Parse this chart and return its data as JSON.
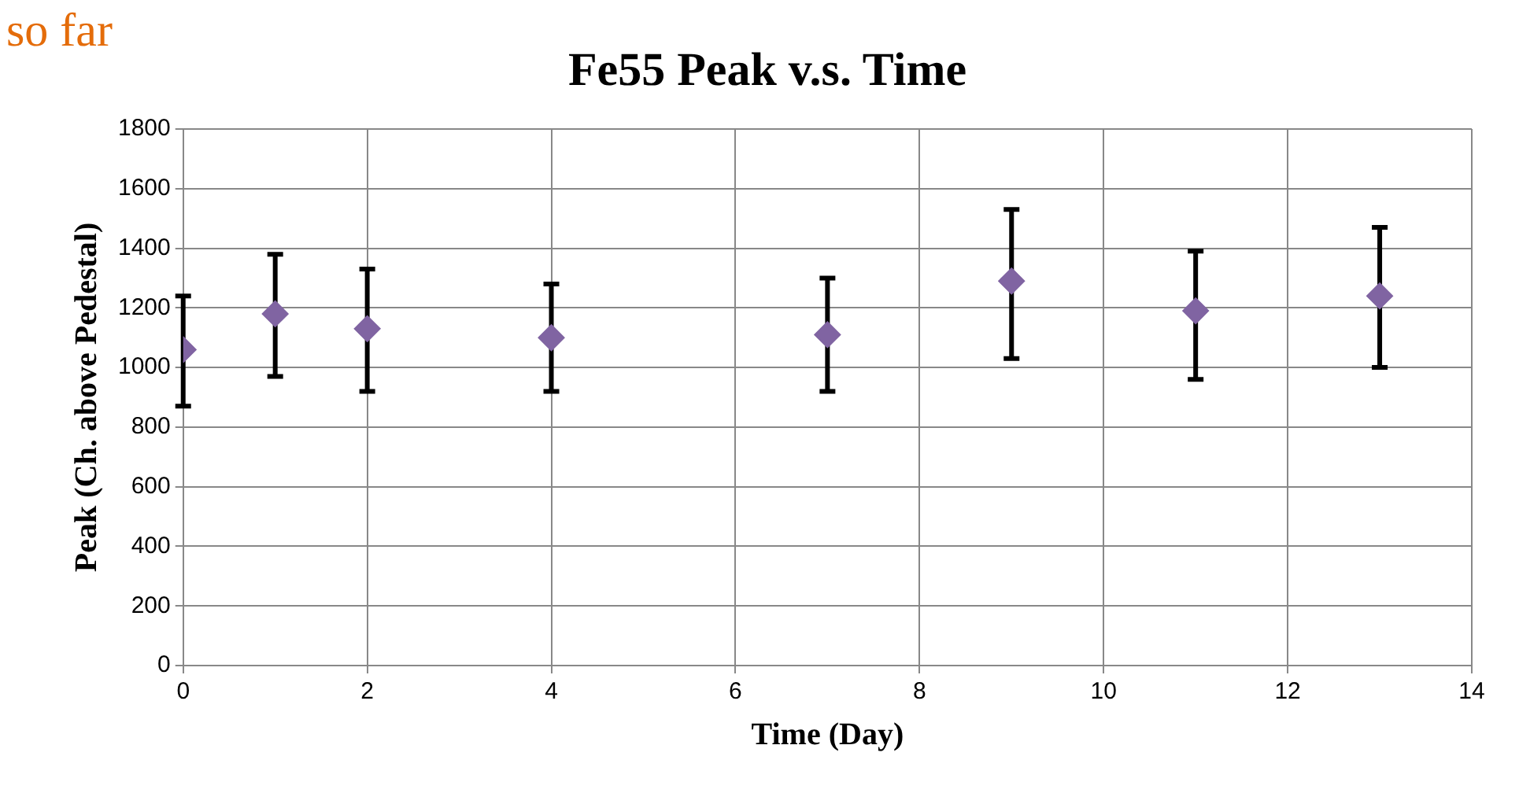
{
  "chart_data": {
    "type": "scatter",
    "title": "Fe55 Peak v.s. Time",
    "xlabel": "Time (Day)",
    "ylabel": "Peak (Ch. above Pedestal)",
    "annotations": [
      "so far"
    ],
    "x": [
      0,
      1,
      2,
      4,
      7,
      9,
      11,
      13
    ],
    "series": [
      {
        "color": "#8064a2",
        "values": [
          1060,
          1180,
          1130,
          1100,
          1110,
          1290,
          1190,
          1240
        ],
        "errors": [
          [
            870,
            1240
          ],
          [
            970,
            1380
          ],
          [
            920,
            1330
          ],
          [
            920,
            1280
          ],
          [
            920,
            1300
          ],
          [
            1030,
            1530
          ],
          [
            960,
            1390
          ],
          [
            1000,
            1470
          ]
        ]
      }
    ],
    "xlim": [
      0,
      14
    ],
    "xticks": [
      0,
      2,
      4,
      6,
      8,
      10,
      12,
      14
    ],
    "ylim": [
      0,
      1800
    ],
    "yticks": [
      0,
      200,
      400,
      600,
      800,
      1000,
      1200,
      1400,
      1600,
      1800
    ],
    "grid": true,
    "legend": false,
    "marker": "diamond"
  }
}
